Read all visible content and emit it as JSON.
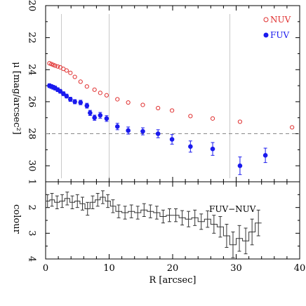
{
  "chart_data": [
    {
      "type": "scatter",
      "panel": "top",
      "ylabel": "μ [mag/arcsec²]",
      "ylim": [
        20,
        31
      ],
      "y_inverted": true,
      "xlim": [
        0,
        40
      ],
      "y_ticks": [
        "20",
        "22",
        "24",
        "26",
        "28",
        "30"
      ],
      "reference_line": {
        "y": 28,
        "style": "dashed",
        "color": "#888888"
      },
      "legend_position": "top-right",
      "series": [
        {
          "name": "NUV",
          "marker": "open-circle",
          "color": "#e03030",
          "points": [
            {
              "x": 0.6,
              "y": 23.6
            },
            {
              "x": 0.9,
              "y": 23.65
            },
            {
              "x": 1.2,
              "y": 23.7
            },
            {
              "x": 1.5,
              "y": 23.75
            },
            {
              "x": 1.9,
              "y": 23.8
            },
            {
              "x": 2.3,
              "y": 23.85
            },
            {
              "x": 2.8,
              "y": 23.95
            },
            {
              "x": 3.3,
              "y": 24.05
            },
            {
              "x": 3.9,
              "y": 24.2
            },
            {
              "x": 4.6,
              "y": 24.45
            },
            {
              "x": 5.5,
              "y": 24.75
            },
            {
              "x": 6.5,
              "y": 25.05
            },
            {
              "x": 7.7,
              "y": 25.25
            },
            {
              "x": 8.6,
              "y": 25.45
            },
            {
              "x": 9.6,
              "y": 25.6
            },
            {
              "x": 11.3,
              "y": 25.85
            },
            {
              "x": 13.0,
              "y": 26.05
            },
            {
              "x": 15.3,
              "y": 26.2
            },
            {
              "x": 17.7,
              "y": 26.4
            },
            {
              "x": 19.9,
              "y": 26.55
            },
            {
              "x": 22.8,
              "y": 26.9
            },
            {
              "x": 26.3,
              "y": 27.05
            },
            {
              "x": 30.6,
              "y": 27.25
            },
            {
              "x": 38.8,
              "y": 27.6
            }
          ]
        },
        {
          "name": "FUV",
          "marker": "filled-circle",
          "color": "#1a1aee",
          "points": [
            {
              "x": 0.6,
              "y": 25.0,
              "err": 0.12
            },
            {
              "x": 0.9,
              "y": 25.05,
              "err": 0.12
            },
            {
              "x": 1.2,
              "y": 25.1,
              "err": 0.12
            },
            {
              "x": 1.5,
              "y": 25.15,
              "err": 0.12
            },
            {
              "x": 1.9,
              "y": 25.25,
              "err": 0.12
            },
            {
              "x": 2.3,
              "y": 25.35,
              "err": 0.12
            },
            {
              "x": 2.8,
              "y": 25.5,
              "err": 0.12
            },
            {
              "x": 3.3,
              "y": 25.65,
              "err": 0.12
            },
            {
              "x": 3.9,
              "y": 25.85,
              "err": 0.13
            },
            {
              "x": 4.6,
              "y": 26.0,
              "err": 0.13
            },
            {
              "x": 5.5,
              "y": 26.05,
              "err": 0.14
            },
            {
              "x": 6.5,
              "y": 26.25,
              "err": 0.15
            },
            {
              "x": 7.0,
              "y": 26.7,
              "err": 0.16
            },
            {
              "x": 7.7,
              "y": 27.0,
              "err": 0.16
            },
            {
              "x": 8.6,
              "y": 26.85,
              "err": 0.18
            },
            {
              "x": 9.6,
              "y": 27.05,
              "err": 0.18
            },
            {
              "x": 11.3,
              "y": 27.55,
              "err": 0.2
            },
            {
              "x": 13.0,
              "y": 27.8,
              "err": 0.22
            },
            {
              "x": 15.3,
              "y": 27.85,
              "err": 0.22
            },
            {
              "x": 17.7,
              "y": 28.0,
              "err": 0.25
            },
            {
              "x": 19.9,
              "y": 28.35,
              "err": 0.3
            },
            {
              "x": 22.8,
              "y": 28.8,
              "err": 0.35
            },
            {
              "x": 26.3,
              "y": 28.95,
              "err": 0.4
            },
            {
              "x": 30.6,
              "y": 30.0,
              "err": 0.55
            },
            {
              "x": 34.6,
              "y": 29.35,
              "err": 0.45
            }
          ]
        }
      ]
    },
    {
      "type": "line",
      "panel": "bottom",
      "xlabel": "R [arcsec]",
      "ylabel": "colour",
      "xlim": [
        0,
        40
      ],
      "ylim": [
        1,
        4
      ],
      "y_inverted": true,
      "x_ticks": [
        "0",
        "10",
        "20",
        "30",
        "40"
      ],
      "y_ticks": [
        "1",
        "2",
        "3",
        "4"
      ],
      "annotation": "FUV−NUV",
      "series": [
        {
          "name": "FUV−NUV",
          "style": "step",
          "color": "#333333",
          "x": [
            0.3,
            1.0,
            1.8,
            2.6,
            3.4,
            4.2,
            5.0,
            5.8,
            6.6,
            7.4,
            8.2,
            9.0,
            9.8,
            10.6,
            11.5,
            12.5,
            13.5,
            14.5,
            15.5,
            16.5,
            17.5,
            18.5,
            19.5,
            20.5,
            21.5,
            22.5,
            23.5,
            24.5,
            25.5,
            26.5,
            27.5,
            28.5,
            29.5,
            30.5,
            31.5,
            32.5,
            33.5
          ],
          "y": [
            1.75,
            1.7,
            1.8,
            1.75,
            1.65,
            1.8,
            1.75,
            1.85,
            2.05,
            1.8,
            1.7,
            1.6,
            1.75,
            1.95,
            2.15,
            2.2,
            2.15,
            2.2,
            2.1,
            2.15,
            2.2,
            2.35,
            2.3,
            2.3,
            2.4,
            2.45,
            2.4,
            2.55,
            2.45,
            2.65,
            2.75,
            3.1,
            3.45,
            3.2,
            3.3,
            2.95,
            2.6
          ],
          "err": [
            0.25,
            0.25,
            0.25,
            0.25,
            0.25,
            0.25,
            0.25,
            0.25,
            0.25,
            0.25,
            0.25,
            0.25,
            0.25,
            0.25,
            0.25,
            0.25,
            0.25,
            0.25,
            0.25,
            0.25,
            0.25,
            0.25,
            0.25,
            0.25,
            0.28,
            0.3,
            0.3,
            0.3,
            0.32,
            0.35,
            0.4,
            0.45,
            0.5,
            0.5,
            0.5,
            0.5,
            0.5
          ]
        }
      ]
    }
  ]
}
